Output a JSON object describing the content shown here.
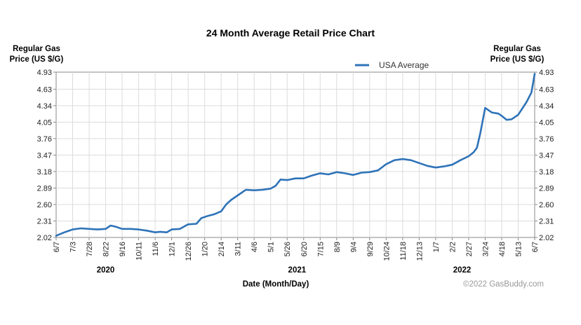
{
  "chart_data": {
    "type": "line",
    "title": "24 Month Average Retail Price Chart",
    "ylabel_left": [
      "Regular Gas",
      "Price (US $/G)"
    ],
    "ylabel_right": [
      "Regular Gas",
      "Price (US $/G)"
    ],
    "xlabel": "Date (Month/Day)",
    "credit": "©2022 GasBuddy.com",
    "ylim": [
      2.02,
      4.93
    ],
    "yticks": [
      "4.93",
      "4.63",
      "4.34",
      "4.05",
      "3.76",
      "3.47",
      "3.18",
      "2.89",
      "2.60",
      "2.31",
      "2.02"
    ],
    "xticks": [
      "6/7",
      "7/3",
      "7/28",
      "8/22",
      "9/16",
      "10/11",
      "11/6",
      "12/1",
      "12/26",
      "1/20",
      "2/14",
      "3/11",
      "4/6",
      "5/1",
      "5/26",
      "6/20",
      "7/15",
      "8/9",
      "9/4",
      "9/29",
      "10/24",
      "11/18",
      "12/13",
      "1/7",
      "2/2",
      "2/27",
      "3/24",
      "4/18",
      "5/13",
      "6/7"
    ],
    "years": [
      {
        "label": "2020",
        "tick_index": 3
      },
      {
        "label": "2021",
        "tick_index": 14.6
      },
      {
        "label": "2022",
        "tick_index": 24.6
      }
    ],
    "grid": true,
    "legend_position": "top-right",
    "series": [
      {
        "name": "USA Average",
        "color": "#2e73b8",
        "tick_index": [
          0,
          0.5,
          1,
          1.5,
          2,
          2.5,
          3,
          3.3,
          3.6,
          4,
          4.5,
          5,
          5.5,
          6,
          6.3,
          6.7,
          7,
          7.5,
          8,
          8.5,
          8.8,
          9.2,
          9.6,
          10,
          10.3,
          10.6,
          11,
          11.5,
          12,
          12.5,
          13,
          13.3,
          13.6,
          14,
          14.5,
          15,
          15.5,
          16,
          16.5,
          17,
          17.5,
          18,
          18.5,
          19,
          19.5,
          20,
          20.5,
          21,
          21.5,
          22,
          22.5,
          23,
          23.5,
          24,
          24.5,
          25,
          25.3,
          25.5,
          25.7,
          26,
          26.4,
          26.8,
          27,
          27.3,
          27.6,
          28,
          28.5,
          28.8,
          29
        ],
        "values": [
          2.05,
          2.11,
          2.16,
          2.18,
          2.17,
          2.16,
          2.17,
          2.23,
          2.21,
          2.17,
          2.17,
          2.16,
          2.14,
          2.11,
          2.12,
          2.11,
          2.16,
          2.17,
          2.25,
          2.26,
          2.36,
          2.4,
          2.43,
          2.48,
          2.6,
          2.68,
          2.76,
          2.86,
          2.85,
          2.86,
          2.88,
          2.93,
          3.04,
          3.03,
          3.06,
          3.06,
          3.11,
          3.15,
          3.13,
          3.17,
          3.15,
          3.12,
          3.16,
          3.17,
          3.2,
          3.31,
          3.38,
          3.4,
          3.38,
          3.33,
          3.28,
          3.25,
          3.27,
          3.3,
          3.38,
          3.45,
          3.52,
          3.6,
          3.85,
          4.3,
          4.22,
          4.2,
          4.16,
          4.09,
          4.1,
          4.18,
          4.4,
          4.57,
          4.9
        ]
      }
    ]
  }
}
